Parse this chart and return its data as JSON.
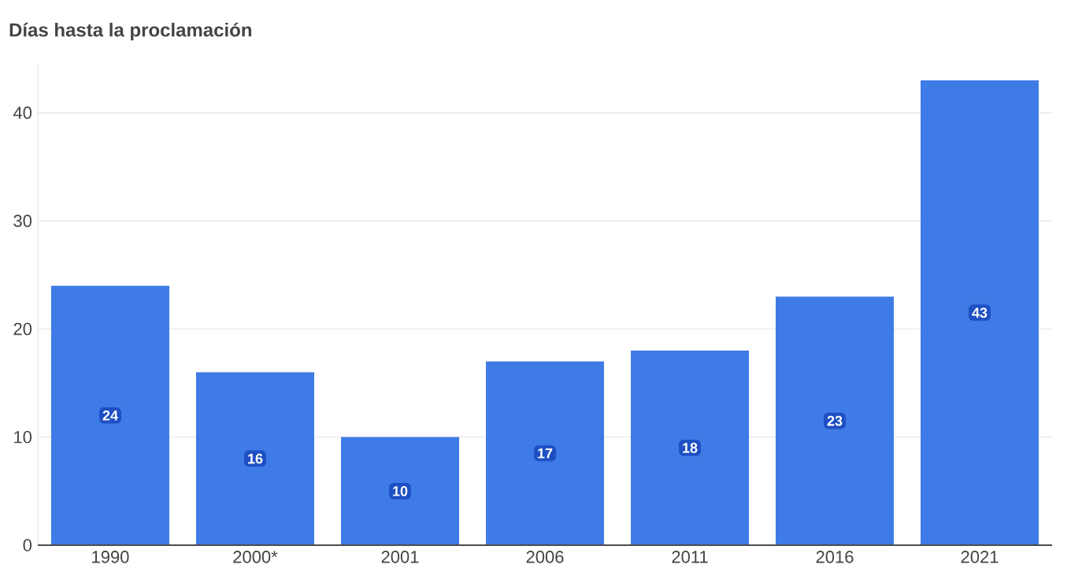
{
  "chart_data": {
    "type": "bar",
    "title": "Días hasta la proclamación",
    "categories": [
      "1990",
      "2000*",
      "2001",
      "2006",
      "2011",
      "2016",
      "2021"
    ],
    "values": [
      24,
      16,
      10,
      17,
      18,
      23,
      43
    ],
    "color": "#3f7be6",
    "ylim": [
      0,
      44.6
    ],
    "yticks": [
      0,
      10,
      20,
      30,
      40
    ],
    "grid": "y",
    "data_labels": true
  }
}
